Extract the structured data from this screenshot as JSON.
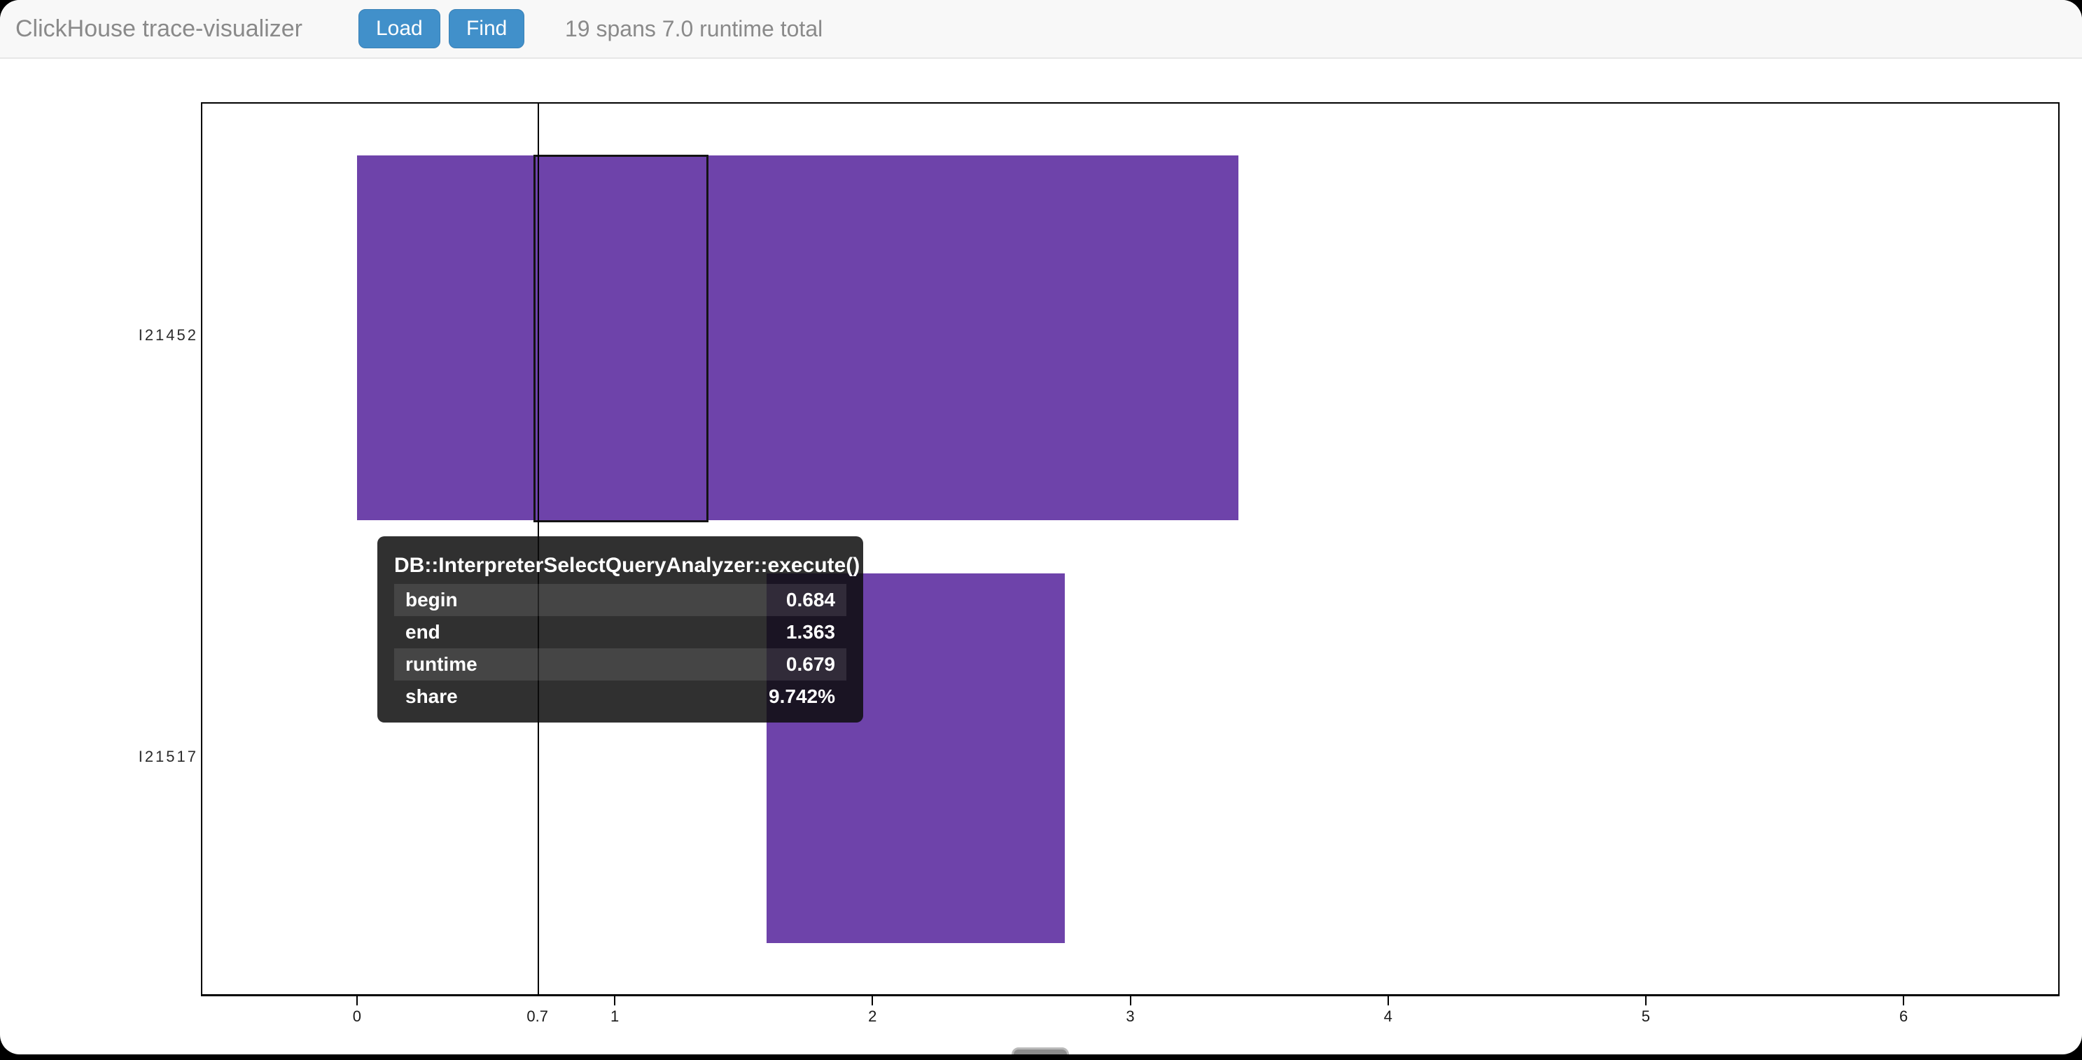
{
  "header": {
    "title": "ClickHouse trace-visualizer",
    "load_button": "Load",
    "find_button": "Find",
    "status": "19 spans 7.0 runtime total"
  },
  "colors": {
    "span_fill": "#6e43aa",
    "button_blue": "#4190ca",
    "header_bg": "#f8f8f8",
    "tooltip_bg": "rgba(12,12,12,0.85)",
    "muted_text": "#8a8a8a"
  },
  "chart_data": {
    "type": "bar",
    "subtype": "horizontal-span-timeline",
    "x_axis": {
      "min": -0.6,
      "max": 6.6,
      "grid": false
    },
    "x_ticks": [
      {
        "label": "0",
        "v": 0,
        "mark": true
      },
      {
        "label": "0.7",
        "v": 0.7,
        "mark": false
      },
      {
        "label": "1",
        "v": 1,
        "mark": true
      },
      {
        "label": "2",
        "v": 2,
        "mark": true
      },
      {
        "label": "3",
        "v": 3,
        "mark": true
      },
      {
        "label": "4",
        "v": 4,
        "mark": true
      },
      {
        "label": "5",
        "v": 5,
        "mark": true
      },
      {
        "label": "6",
        "v": 6,
        "mark": true
      }
    ],
    "cursor_x": 0.7,
    "lanes": [
      {
        "label": "I21452",
        "spans": [
          {
            "begin": 0,
            "end": 3.42
          }
        ]
      },
      {
        "label": "I21517",
        "spans": [
          {
            "begin": 1.59,
            "end": 2.745
          }
        ]
      }
    ],
    "highlight": {
      "lane": 0,
      "begin": 0.684,
      "end": 1.363
    }
  },
  "tooltip": {
    "title": "DB::InterpreterSelectQueryAnalyzer::execute()",
    "rows": [
      {
        "label": "begin",
        "value": "0.684"
      },
      {
        "label": "end",
        "value": "1.363"
      },
      {
        "label": "runtime",
        "value": "0.679"
      },
      {
        "label": "share",
        "value": "9.742%"
      }
    ]
  }
}
